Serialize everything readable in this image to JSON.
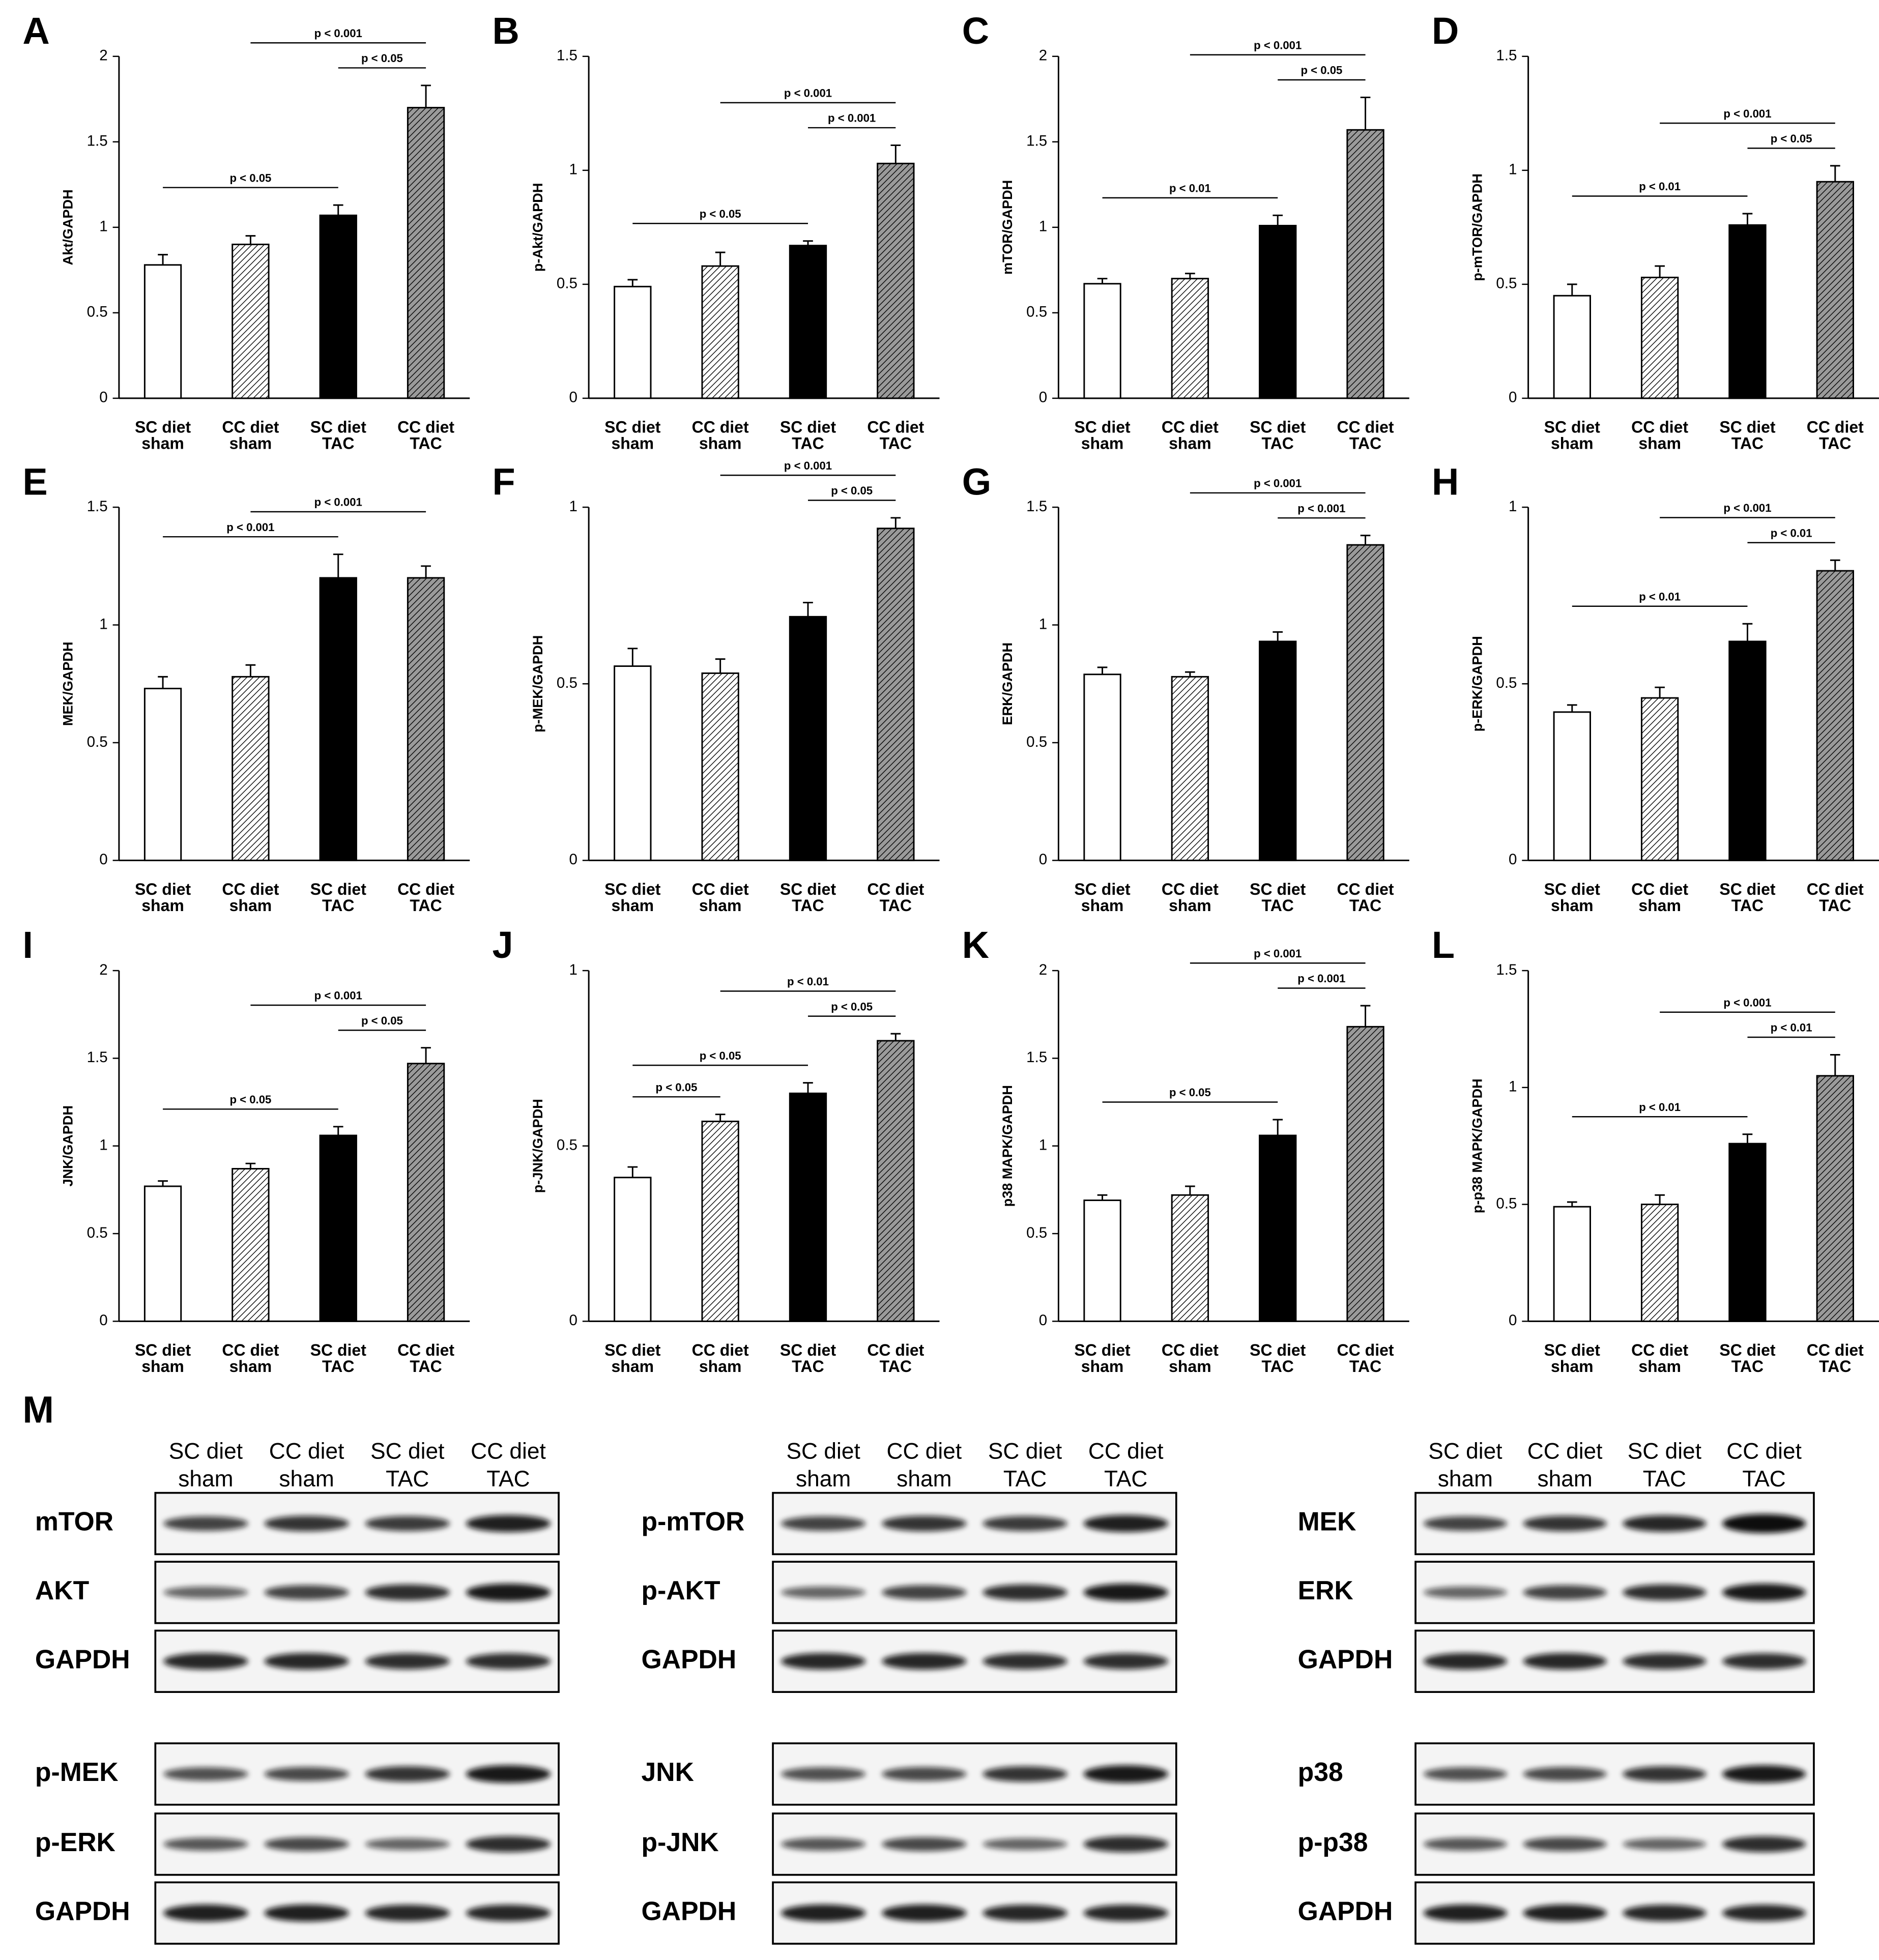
{
  "chart_data": [
    {
      "type": "bar",
      "panel": "A",
      "ylabel": "Akt/GAPDH",
      "categories": [
        [
          "SC diet",
          "sham"
        ],
        [
          "CC diet",
          "sham"
        ],
        [
          "SC diet",
          "TAC"
        ],
        [
          "CC diet",
          "TAC"
        ]
      ],
      "values": [
        0.78,
        0.9,
        1.07,
        1.7
      ],
      "errors": [
        0.06,
        0.05,
        0.06,
        0.13
      ],
      "colors": [
        "#ffffff",
        "#ffffff",
        "#000000",
        "#9a9a9a"
      ],
      "hatched": [
        false,
        true,
        false,
        true
      ],
      "ylim": [
        0,
        2
      ],
      "yticks": [
        0,
        0.5,
        1,
        1.5,
        2
      ],
      "annotations": [
        {
          "label": "p < 0.05",
          "between": [
            0,
            2
          ]
        },
        {
          "label": "p < 0.05",
          "between": [
            2,
            3
          ]
        },
        {
          "label": "p < 0.001",
          "between": [
            1,
            3
          ]
        }
      ]
    },
    {
      "type": "bar",
      "panel": "B",
      "ylabel": "p-Akt/GAPDH",
      "categories": [
        [
          "SC diet",
          "sham"
        ],
        [
          "CC diet",
          "sham"
        ],
        [
          "SC diet",
          "TAC"
        ],
        [
          "CC diet",
          "TAC"
        ]
      ],
      "values": [
        0.49,
        0.58,
        0.67,
        1.03
      ],
      "errors": [
        0.03,
        0.06,
        0.02,
        0.08
      ],
      "colors": [
        "#ffffff",
        "#ffffff",
        "#000000",
        "#9a9a9a"
      ],
      "hatched": [
        false,
        true,
        false,
        true
      ],
      "ylim": [
        0,
        1.5
      ],
      "yticks": [
        0,
        0.5,
        1,
        1.5
      ],
      "annotations": [
        {
          "label": "p < 0.05",
          "between": [
            0,
            2
          ]
        },
        {
          "label": "p < 0.001",
          "between": [
            2,
            3
          ]
        },
        {
          "label": "p < 0.001",
          "between": [
            1,
            3
          ]
        }
      ]
    },
    {
      "type": "bar",
      "panel": "C",
      "ylabel": "mTOR/GAPDH",
      "categories": [
        [
          "SC diet",
          "sham"
        ],
        [
          "CC diet",
          "sham"
        ],
        [
          "SC diet",
          "TAC"
        ],
        [
          "CC diet",
          "TAC"
        ]
      ],
      "values": [
        0.67,
        0.7,
        1.01,
        1.57
      ],
      "errors": [
        0.03,
        0.03,
        0.06,
        0.19
      ],
      "colors": [
        "#ffffff",
        "#ffffff",
        "#000000",
        "#9a9a9a"
      ],
      "hatched": [
        false,
        true,
        false,
        true
      ],
      "ylim": [
        0,
        2
      ],
      "yticks": [
        0,
        0.5,
        1,
        1.5,
        2
      ],
      "annotations": [
        {
          "label": "p < 0.01",
          "between": [
            0,
            2
          ]
        },
        {
          "label": "p < 0.05",
          "between": [
            2,
            3
          ]
        },
        {
          "label": "p < 0.001",
          "between": [
            1,
            3
          ]
        }
      ]
    },
    {
      "type": "bar",
      "panel": "D",
      "ylabel": "p-mTOR/GAPDH",
      "categories": [
        [
          "SC diet",
          "sham"
        ],
        [
          "CC diet",
          "sham"
        ],
        [
          "SC diet",
          "TAC"
        ],
        [
          "CC diet",
          "TAC"
        ]
      ],
      "values": [
        0.45,
        0.53,
        0.76,
        0.95
      ],
      "errors": [
        0.05,
        0.05,
        0.05,
        0.07
      ],
      "colors": [
        "#ffffff",
        "#ffffff",
        "#000000",
        "#9a9a9a"
      ],
      "hatched": [
        false,
        true,
        false,
        true
      ],
      "ylim": [
        0,
        1.5
      ],
      "yticks": [
        0,
        0.5,
        1,
        1.5
      ],
      "annotations": [
        {
          "label": "p < 0.01",
          "between": [
            0,
            2
          ]
        },
        {
          "label": "p < 0.05",
          "between": [
            2,
            3
          ]
        },
        {
          "label": "p < 0.001",
          "between": [
            1,
            3
          ]
        }
      ]
    },
    {
      "type": "bar",
      "panel": "E",
      "ylabel": "MEK/GAPDH",
      "categories": [
        [
          "SC diet",
          "sham"
        ],
        [
          "CC diet",
          "sham"
        ],
        [
          "SC diet",
          "TAC"
        ],
        [
          "CC diet",
          "TAC"
        ]
      ],
      "values": [
        0.73,
        0.78,
        1.2,
        1.2
      ],
      "errors": [
        0.05,
        0.05,
        0.1,
        0.05
      ],
      "colors": [
        "#ffffff",
        "#ffffff",
        "#000000",
        "#9a9a9a"
      ],
      "hatched": [
        false,
        true,
        false,
        true
      ],
      "ylim": [
        0,
        1.5
      ],
      "yticks": [
        0,
        0.5,
        1,
        1.5
      ],
      "annotations": [
        {
          "label": "p < 0.001",
          "between": [
            0,
            2
          ]
        },
        {
          "label": "p < 0.001",
          "between": [
            1,
            3
          ]
        }
      ]
    },
    {
      "type": "bar",
      "panel": "F",
      "ylabel": "p-MEK/GAPDH",
      "categories": [
        [
          "SC diet",
          "sham"
        ],
        [
          "CC diet",
          "sham"
        ],
        [
          "SC diet",
          "TAC"
        ],
        [
          "CC diet",
          "TAC"
        ]
      ],
      "values": [
        0.55,
        0.53,
        0.69,
        0.94
      ],
      "errors": [
        0.05,
        0.04,
        0.04,
        0.03
      ],
      "colors": [
        "#ffffff",
        "#ffffff",
        "#000000",
        "#9a9a9a"
      ],
      "hatched": [
        false,
        true,
        false,
        true
      ],
      "ylim": [
        0,
        1
      ],
      "yticks": [
        0,
        0.5,
        1
      ],
      "annotations": [
        {
          "label": "p < 0.05",
          "between": [
            2,
            3
          ]
        },
        {
          "label": "p < 0.001",
          "between": [
            1,
            3
          ]
        }
      ]
    },
    {
      "type": "bar",
      "panel": "G",
      "ylabel": "ERK/GAPDH",
      "categories": [
        [
          "SC diet",
          "sham"
        ],
        [
          "CC diet",
          "sham"
        ],
        [
          "SC diet",
          "TAC"
        ],
        [
          "CC diet",
          "TAC"
        ]
      ],
      "values": [
        0.79,
        0.78,
        0.93,
        1.34
      ],
      "errors": [
        0.03,
        0.02,
        0.04,
        0.04
      ],
      "colors": [
        "#ffffff",
        "#ffffff",
        "#000000",
        "#9a9a9a"
      ],
      "hatched": [
        false,
        true,
        false,
        true
      ],
      "ylim": [
        0,
        1.5
      ],
      "yticks": [
        0,
        0.5,
        1,
        1.5
      ],
      "annotations": [
        {
          "label": "p < 0.001",
          "between": [
            2,
            3
          ]
        },
        {
          "label": "p < 0.001",
          "between": [
            1,
            3
          ]
        }
      ]
    },
    {
      "type": "bar",
      "panel": "H",
      "ylabel": "p-ERK/GAPDH",
      "categories": [
        [
          "SC diet",
          "sham"
        ],
        [
          "CC diet",
          "sham"
        ],
        [
          "SC diet",
          "TAC"
        ],
        [
          "CC diet",
          "TAC"
        ]
      ],
      "values": [
        0.42,
        0.46,
        0.62,
        0.82
      ],
      "errors": [
        0.02,
        0.03,
        0.05,
        0.03
      ],
      "colors": [
        "#ffffff",
        "#ffffff",
        "#000000",
        "#9a9a9a"
      ],
      "hatched": [
        false,
        true,
        false,
        true
      ],
      "ylim": [
        0,
        1
      ],
      "yticks": [
        0,
        0.5,
        1
      ],
      "annotations": [
        {
          "label": "p < 0.01",
          "between": [
            0,
            2
          ]
        },
        {
          "label": "p < 0.01",
          "between": [
            2,
            3
          ]
        },
        {
          "label": "p < 0.001",
          "between": [
            1,
            3
          ]
        }
      ]
    },
    {
      "type": "bar",
      "panel": "I",
      "ylabel": "JNK/GAPDH",
      "categories": [
        [
          "SC diet",
          "sham"
        ],
        [
          "CC diet",
          "sham"
        ],
        [
          "SC diet",
          "TAC"
        ],
        [
          "CC diet",
          "TAC"
        ]
      ],
      "values": [
        0.77,
        0.87,
        1.06,
        1.47
      ],
      "errors": [
        0.03,
        0.03,
        0.05,
        0.09
      ],
      "colors": [
        "#ffffff",
        "#ffffff",
        "#000000",
        "#9a9a9a"
      ],
      "hatched": [
        false,
        true,
        false,
        true
      ],
      "ylim": [
        0,
        2
      ],
      "yticks": [
        0,
        0.5,
        1,
        1.5,
        2
      ],
      "annotations": [
        {
          "label": "p < 0.05",
          "between": [
            0,
            2
          ]
        },
        {
          "label": "p < 0.05",
          "between": [
            2,
            3
          ]
        },
        {
          "label": "p < 0.001",
          "between": [
            1,
            3
          ]
        }
      ]
    },
    {
      "type": "bar",
      "panel": "J",
      "ylabel": "p-JNK/GAPDH",
      "categories": [
        [
          "SC diet",
          "sham"
        ],
        [
          "CC diet",
          "sham"
        ],
        [
          "SC diet",
          "TAC"
        ],
        [
          "CC diet",
          "TAC"
        ]
      ],
      "values": [
        0.41,
        0.57,
        0.65,
        0.8
      ],
      "errors": [
        0.03,
        0.02,
        0.03,
        0.02
      ],
      "colors": [
        "#ffffff",
        "#ffffff",
        "#000000",
        "#9a9a9a"
      ],
      "hatched": [
        false,
        true,
        false,
        true
      ],
      "ylim": [
        0,
        1
      ],
      "yticks": [
        0,
        0.5,
        1
      ],
      "annotations": [
        {
          "label": "p < 0.05",
          "between": [
            0,
            1
          ]
        },
        {
          "label": "p < 0.05",
          "between": [
            0,
            2
          ]
        },
        {
          "label": "p < 0.05",
          "between": [
            2,
            3
          ]
        },
        {
          "label": "p < 0.01",
          "between": [
            1,
            3
          ]
        }
      ]
    },
    {
      "type": "bar",
      "panel": "K",
      "ylabel": "p38 MAPK/GAPDH",
      "categories": [
        [
          "SC diet",
          "sham"
        ],
        [
          "CC diet",
          "sham"
        ],
        [
          "SC diet",
          "TAC"
        ],
        [
          "CC diet",
          "TAC"
        ]
      ],
      "values": [
        0.69,
        0.72,
        1.06,
        1.68
      ],
      "errors": [
        0.03,
        0.05,
        0.09,
        0.12
      ],
      "colors": [
        "#ffffff",
        "#ffffff",
        "#000000",
        "#9a9a9a"
      ],
      "hatched": [
        false,
        true,
        false,
        true
      ],
      "ylim": [
        0,
        2
      ],
      "yticks": [
        0,
        0.5,
        1,
        1.5,
        2
      ],
      "annotations": [
        {
          "label": "p < 0.05",
          "between": [
            0,
            2
          ]
        },
        {
          "label": "p < 0.001",
          "between": [
            2,
            3
          ]
        },
        {
          "label": "p < 0.001",
          "between": [
            1,
            3
          ]
        }
      ]
    },
    {
      "type": "bar",
      "panel": "L",
      "ylabel": "p-p38 MAPK/GAPDH",
      "categories": [
        [
          "SC diet",
          "sham"
        ],
        [
          "CC diet",
          "sham"
        ],
        [
          "SC diet",
          "TAC"
        ],
        [
          "CC diet",
          "TAC"
        ]
      ],
      "values": [
        0.49,
        0.5,
        0.76,
        1.05
      ],
      "errors": [
        0.02,
        0.04,
        0.04,
        0.09
      ],
      "colors": [
        "#ffffff",
        "#ffffff",
        "#000000",
        "#9a9a9a"
      ],
      "hatched": [
        false,
        true,
        false,
        true
      ],
      "ylim": [
        0,
        1.5
      ],
      "yticks": [
        0,
        0.5,
        1,
        1.5
      ],
      "annotations": [
        {
          "label": "p < 0.01",
          "between": [
            0,
            2
          ]
        },
        {
          "label": "p < 0.01",
          "between": [
            2,
            3
          ]
        },
        {
          "label": "p < 0.001",
          "between": [
            1,
            3
          ]
        }
      ]
    }
  ],
  "blots": {
    "panel": "M",
    "groups": [
      {
        "headers": [
          [
            "SC diet",
            "sham"
          ],
          [
            "CC diet",
            "sham"
          ],
          [
            "SC diet",
            "TAC"
          ],
          [
            "CC diet",
            "TAC"
          ]
        ],
        "rows": [
          "mTOR",
          "AKT",
          "GAPDH",
          "p-MEK",
          "p-ERK",
          "GAPDH"
        ]
      },
      {
        "headers": [
          [
            "SC diet",
            "sham"
          ],
          [
            "CC diet",
            "sham"
          ],
          [
            "SC diet",
            "TAC"
          ],
          [
            "CC diet",
            "TAC"
          ]
        ],
        "rows": [
          "p-mTOR",
          "p-AKT",
          "GAPDH",
          "JNK",
          "p-JNK",
          "GAPDH"
        ]
      },
      {
        "headers": [
          [
            "SC diet",
            "sham"
          ],
          [
            "CC diet",
            "sham"
          ],
          [
            "SC diet",
            "TAC"
          ],
          [
            "CC diet",
            "TAC"
          ]
        ],
        "rows": [
          "MEK",
          "ERK",
          "GAPDH",
          "p38",
          "p-p38",
          "GAPDH"
        ]
      }
    ]
  }
}
